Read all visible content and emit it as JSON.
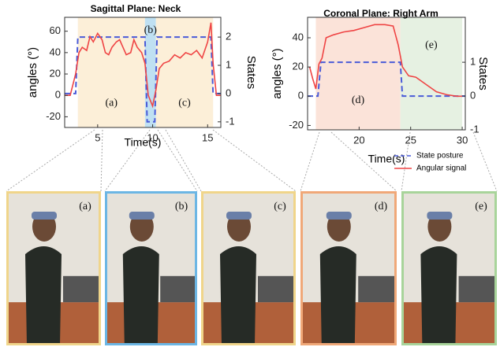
{
  "chart_data": [
    {
      "type": "line",
      "title": "Sagittal Plane: Neck",
      "xlabel": "Time(s)",
      "ylabel": "angles (°)",
      "y2label": "States",
      "xlim": [
        2,
        16.2
      ],
      "xticks": [
        5,
        10,
        15
      ],
      "ylim": [
        -30,
        73
      ],
      "yticks": [
        -20,
        0,
        20,
        40,
        60
      ],
      "y2lim": [
        -1.2,
        2.7
      ],
      "y2ticks": [
        -1,
        0,
        1,
        2
      ],
      "regions": [
        {
          "label": "(a)",
          "start": 3.2,
          "end": 9.3,
          "color": "#fcefd8"
        },
        {
          "label": "(b)",
          "start": 9.3,
          "end": 10.3,
          "color": "#bfe0f2"
        },
        {
          "label": "(c)",
          "start": 10.3,
          "end": 15.5,
          "color": "#fcefd8"
        }
      ],
      "series": [
        {
          "color": "#4a5bd8",
          "dash": true,
          "axis": "y2",
          "x": [
            2,
            3,
            3.2,
            9.3,
            9.5,
            10.2,
            10.4,
            15.3,
            15.5,
            16.2
          ],
          "values": [
            0,
            0,
            2,
            2,
            -1,
            -1,
            2,
            2,
            0,
            0
          ]
        },
        {
          "color": "#ef4444",
          "x": [
            2,
            2.5,
            3,
            3.3,
            3.6,
            4,
            4.3,
            4.6,
            5,
            5.4,
            5.7,
            6,
            6.3,
            6.7,
            7,
            7.3,
            7.6,
            8,
            8.3,
            8.6,
            9,
            9.3,
            9.6,
            10,
            10.3,
            10.6,
            11,
            11.5,
            12,
            12.5,
            13,
            13.5,
            14,
            14.5,
            15,
            15.3,
            15.5,
            15.8,
            16.2
          ],
          "values": [
            0,
            0,
            20,
            40,
            45,
            42,
            55,
            50,
            58,
            52,
            40,
            38,
            45,
            50,
            52,
            45,
            38,
            40,
            52,
            45,
            40,
            30,
            0,
            -10,
            5,
            25,
            30,
            32,
            38,
            35,
            40,
            38,
            42,
            35,
            50,
            68,
            30,
            0,
            0
          ]
        }
      ]
    },
    {
      "type": "line",
      "title": "Coronal Plane: Right Arm",
      "xlabel": "Time(s)",
      "ylabel": "angles (°)",
      "y2label": "States",
      "xlim": [
        15,
        30.3
      ],
      "xticks": [
        20,
        25,
        30
      ],
      "ylim": [
        -23,
        54
      ],
      "yticks": [
        -20,
        0,
        20,
        40
      ],
      "y2lim": [
        -1,
        2.33
      ],
      "y2ticks": [
        -1,
        0,
        1
      ],
      "regions": [
        {
          "label": "(d)",
          "start": 15.8,
          "end": 24,
          "color": "#fbe3d9"
        },
        {
          "label": "(e)",
          "start": 24,
          "end": 30,
          "color": "#e6f1e2"
        }
      ],
      "legend": "lower right",
      "series": [
        {
          "name": "State posture",
          "color": "#4a5bd8",
          "dash": true,
          "axis": "y2",
          "x": [
            15,
            16,
            16.3,
            24,
            24.2,
            30.3
          ],
          "values": [
            0,
            0,
            1,
            1,
            0,
            0
          ]
        },
        {
          "name": "Angular signal",
          "color": "#ef4444",
          "x": [
            15.2,
            15.5,
            15.8,
            16.1,
            16.4,
            16.8,
            17.5,
            18.5,
            19.5,
            20.5,
            21.5,
            22.5,
            23.3,
            23.8,
            24.2,
            24.8,
            25.5,
            26.5,
            27.5,
            28.5,
            29.5,
            30
          ],
          "values": [
            20,
            12,
            5,
            22,
            26,
            40,
            42,
            44,
            45,
            47,
            49,
            49,
            48,
            35,
            20,
            14,
            13,
            8,
            3,
            1,
            0,
            0
          ]
        }
      ]
    }
  ],
  "photos": [
    {
      "label": "(a)",
      "color": "#f0d58a"
    },
    {
      "label": "(b)",
      "color": "#6cb6e4"
    },
    {
      "label": "(c)",
      "color": "#f0d58a"
    },
    {
      "label": "(d)",
      "color": "#f0a878"
    },
    {
      "label": "(e)",
      "color": "#a8d49a"
    }
  ]
}
